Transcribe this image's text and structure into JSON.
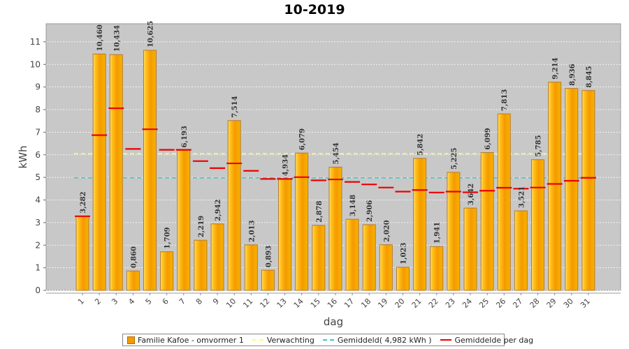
{
  "chart_data": {
    "type": "bar",
    "title": "10-2019",
    "xlabel": "dag",
    "ylabel": "kWh",
    "ylim": [
      0,
      11.8
    ],
    "yticks": [
      "0",
      "1",
      "2",
      "3",
      "4",
      "5",
      "6",
      "7",
      "8",
      "9",
      "10",
      "11"
    ],
    "categories": [
      "1",
      "2",
      "3",
      "4",
      "5",
      "6",
      "7",
      "8",
      "9",
      "10",
      "11",
      "12",
      "13",
      "14",
      "15",
      "16",
      "17",
      "18",
      "19",
      "20",
      "21",
      "22",
      "23",
      "24",
      "25",
      "26",
      "27",
      "28",
      "29",
      "30",
      "31"
    ],
    "series": [
      {
        "name": "Familie Kafoe - omvormer 1",
        "values": [
          3.282,
          10.46,
          10.434,
          0.86,
          10.625,
          1.709,
          6.193,
          2.219,
          2.942,
          7.514,
          2.013,
          0.893,
          4.934,
          6.079,
          2.878,
          5.454,
          3.148,
          2.906,
          2.02,
          1.023,
          5.842,
          1.941,
          5.225,
          3.642,
          6.099,
          7.813,
          3.521,
          5.785,
          9.214,
          8.936,
          8.845
        ],
        "labels": [
          "3,282",
          "10,460",
          "10,434",
          "0,860",
          "10,625",
          "1,709",
          "6,193",
          "2,219",
          "2,942",
          "7,514",
          "2,013",
          "0,893",
          "4,934",
          "6,079",
          "2,878",
          "5,454",
          "3,148",
          "2,906",
          "2,020",
          "1,023",
          "5,842",
          "1,941",
          "5,225",
          "3,642",
          "6,099",
          "7,813",
          "3,521",
          "5,785",
          "9,214",
          "8,936",
          "8,845"
        ],
        "color": "#f59a00"
      },
      {
        "name": "Gemiddelde per dag",
        "values": [
          3.28,
          6.87,
          8.06,
          6.26,
          7.13,
          6.22,
          6.22,
          5.72,
          5.41,
          5.62,
          5.29,
          4.93,
          4.93,
          5.01,
          4.87,
          4.91,
          4.8,
          4.69,
          4.55,
          4.37,
          4.44,
          4.33,
          4.37,
          4.34,
          4.41,
          4.54,
          4.5,
          4.55,
          4.71,
          4.85,
          4.98
        ],
        "color": "#ee0000"
      }
    ],
    "reference_lines": [
      {
        "name": "Verwachting",
        "value": 6.05,
        "color": "#ffff66"
      },
      {
        "name": "Gemiddeld( 4,982 kWh )",
        "value": 4.982,
        "color": "#33cccc"
      }
    ],
    "legend_position": "bottom",
    "grid": true,
    "background": "#c8c8c8"
  }
}
